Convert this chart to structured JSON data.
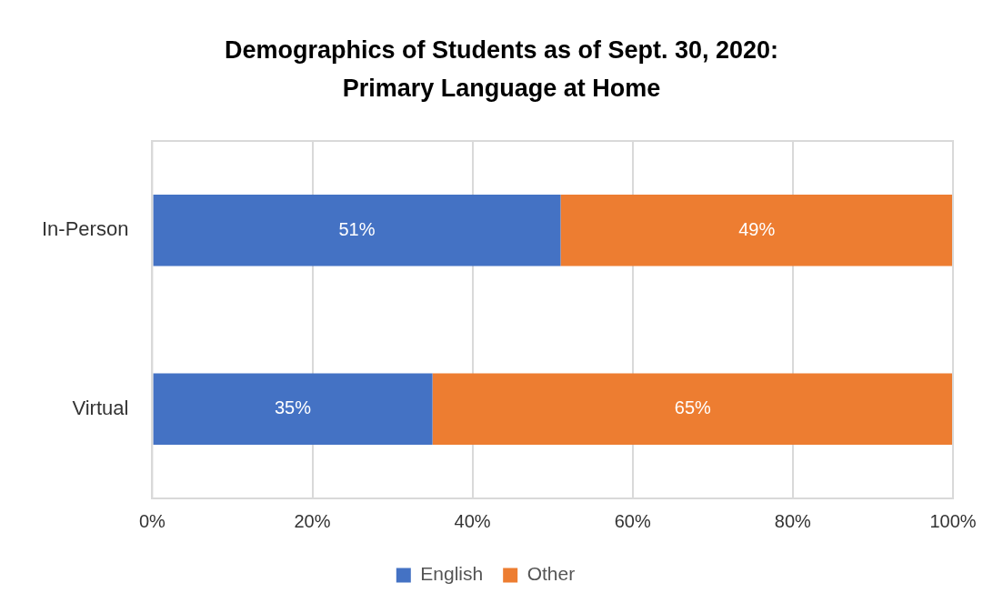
{
  "chart_data": {
    "type": "bar",
    "orientation": "horizontal",
    "stacked": true,
    "title": "Demographics of Students as of Sept. 30, 2020: Primary Language at Home",
    "categories": [
      "In-Person",
      "Virtual"
    ],
    "series": [
      {
        "name": "English",
        "color": "#4472c4",
        "values": [
          51,
          35
        ],
        "value_labels": [
          "51%",
          "35%"
        ]
      },
      {
        "name": "Other",
        "color": "#ed7d31",
        "values": [
          49,
          65
        ],
        "value_labels": [
          "49%",
          "65%"
        ]
      }
    ],
    "xlim": [
      0,
      100
    ],
    "xticks": [
      {
        "value": 0,
        "label": "0%"
      },
      {
        "value": 20,
        "label": "20%"
      },
      {
        "value": 40,
        "label": "40%"
      },
      {
        "value": 60,
        "label": "60%"
      },
      {
        "value": 80,
        "label": "80%"
      },
      {
        "value": 100,
        "label": "100%"
      }
    ],
    "grid": "x",
    "legend": "bottom"
  }
}
